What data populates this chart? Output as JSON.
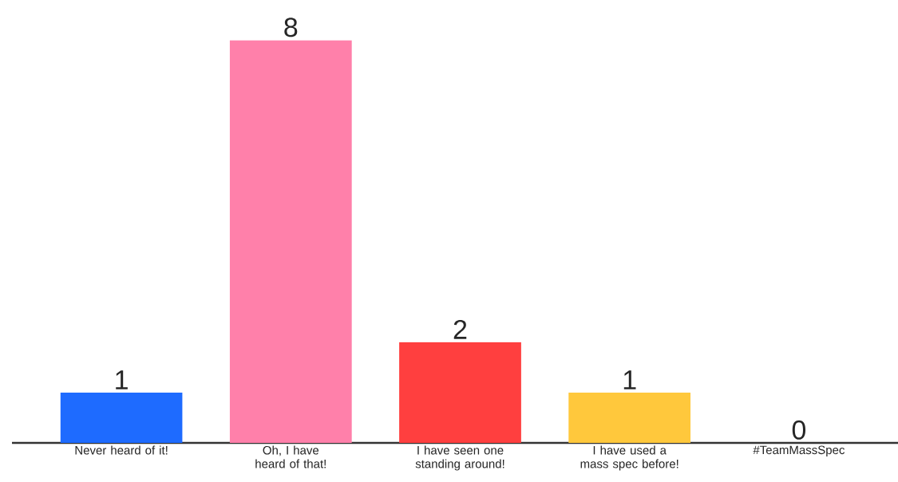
{
  "chart_data": {
    "type": "bar",
    "categories": [
      "Never heard of it!",
      "Oh, I have heard of that!",
      "I have seen one standing around!",
      "I have used a mass spec before!",
      "#TeamMassSpec"
    ],
    "values": [
      1,
      8,
      2,
      1,
      0
    ],
    "colors": [
      "#1e6bff",
      "#ff80aa",
      "#ff3f3f",
      "#ffc83c",
      null
    ],
    "data_labels": true
  }
}
